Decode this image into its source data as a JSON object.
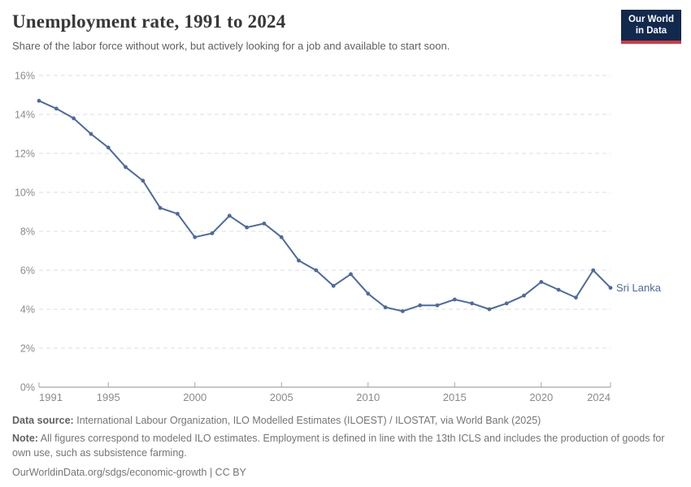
{
  "header": {
    "title": "Unemployment rate, 1991 to 2024",
    "subtitle": "Share of the labor force without work, but actively looking for a job and available to start soon."
  },
  "logo": {
    "line1": "Our World",
    "line2": "in Data"
  },
  "chart_data": {
    "type": "line",
    "title": "Unemployment rate, 1991 to 2024",
    "xlabel": "",
    "ylabel": "",
    "x": [
      1991,
      1992,
      1993,
      1994,
      1995,
      1996,
      1997,
      1998,
      1999,
      2000,
      2001,
      2002,
      2003,
      2004,
      2005,
      2006,
      2007,
      2008,
      2009,
      2010,
      2011,
      2012,
      2013,
      2014,
      2015,
      2016,
      2017,
      2018,
      2019,
      2020,
      2021,
      2022,
      2023,
      2024
    ],
    "series": [
      {
        "name": "Sri Lanka",
        "color": "#4c6a9f",
        "values": [
          14.7,
          14.3,
          13.8,
          13.0,
          12.3,
          11.3,
          10.6,
          9.2,
          8.9,
          7.7,
          7.9,
          8.8,
          8.2,
          8.4,
          7.7,
          6.5,
          6.0,
          5.2,
          5.8,
          4.8,
          4.1,
          3.9,
          4.2,
          4.2,
          4.5,
          4.3,
          4.0,
          4.3,
          4.7,
          5.4,
          5.0,
          4.6,
          6.0,
          5.1
        ]
      }
    ],
    "ylim": [
      0,
      16
    ],
    "ytick_step": 2,
    "ytick_suffix": "%",
    "xticks": [
      1991,
      1995,
      2000,
      2005,
      2010,
      2015,
      2020,
      2024
    ],
    "grid": "horizontal-dashed",
    "legend_position": "end-of-line-label",
    "end_label": "Sri Lanka"
  },
  "colors": {
    "grid": "#dddddd",
    "axis": "#8f8f8f",
    "tick": "#a8a8a8",
    "tick_text": "#8a8a8a"
  },
  "footer": {
    "data_source_label": "Data source:",
    "data_source": "International Labour Organization, ILO Modelled Estimates (ILOEST) / ILOSTAT, via World Bank (2025)",
    "note_label": "Note:",
    "note": "All figures correspond to modeled ILO estimates. Employment is defined in line with the 13th ICLS and includes the production of goods for own use, such as subsistence farming.",
    "url": "OurWorldinData.org/sdgs/economic-growth",
    "separator": "|",
    "license": "CC BY"
  }
}
